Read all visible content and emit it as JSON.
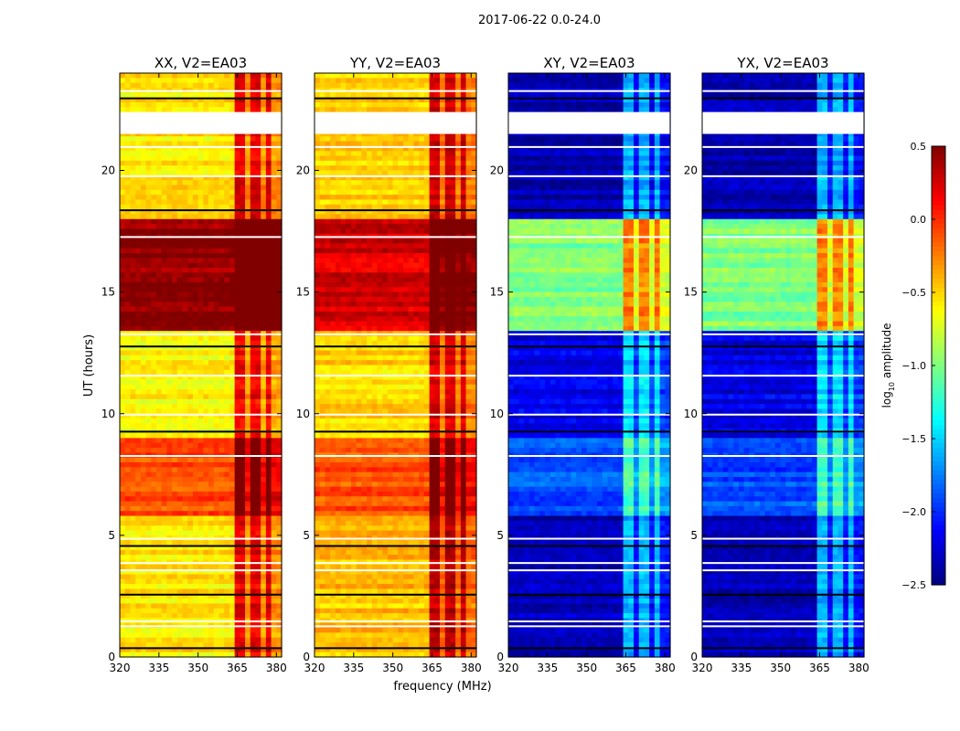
{
  "figure": {
    "suptitle": "2017-06-22 0.0-24.0",
    "ylabel": "UT (hours)",
    "xlabel": "frequency (MHz)"
  },
  "colorbar": {
    "label_prefix": "log",
    "label_sub": "10",
    "label_suffix": " amplitude",
    "colormap": "jet",
    "range": [
      -2.5,
      0.5
    ],
    "ticks": [
      "0.5",
      "0.0",
      "−0.5",
      "−1.0",
      "−1.5",
      "−2.0",
      "−2.5"
    ]
  },
  "chart_data": [
    {
      "type": "heatmap",
      "title": "XX, V2=EA03",
      "xlim": [
        320,
        382
      ],
      "ylim": [
        0,
        24
      ],
      "xticks": [
        "320",
        "335",
        "350",
        "365",
        "380"
      ],
      "yticks": [
        "0",
        "5",
        "10",
        "15",
        "20"
      ],
      "base_level": -0.55,
      "bands": [
        {
          "t0": 0,
          "t1": 5.8,
          "v": -0.55
        },
        {
          "t0": 5.8,
          "t1": 9.0,
          "v": -0.1
        },
        {
          "t0": 9.0,
          "t1": 13.5,
          "v": -0.6
        },
        {
          "t0": 13.5,
          "t1": 18.0,
          "v": 0.45
        },
        {
          "t0": 18.0,
          "t1": 24,
          "v": -0.55
        }
      ],
      "rfi_channels_mhz": [
        366,
        372,
        377
      ],
      "gap_hours": [
        21.5,
        22.4
      ]
    },
    {
      "type": "heatmap",
      "title": "YY, V2=EA03",
      "xlim": [
        320,
        382
      ],
      "ylim": [
        0,
        24
      ],
      "xticks": [
        "320",
        "335",
        "350",
        "365",
        "380"
      ],
      "yticks": [
        "0",
        "5",
        "10",
        "15",
        "20"
      ],
      "base_level": -0.45,
      "bands": [
        {
          "t0": 0,
          "t1": 5.8,
          "v": -0.45
        },
        {
          "t0": 5.8,
          "t1": 9.0,
          "v": -0.1
        },
        {
          "t0": 9.0,
          "t1": 13.5,
          "v": -0.5
        },
        {
          "t0": 13.5,
          "t1": 18.0,
          "v": 0.25
        },
        {
          "t0": 18.0,
          "t1": 24,
          "v": -0.5
        }
      ],
      "rfi_channels_mhz": [
        366,
        372,
        377
      ],
      "gap_hours": [
        21.5,
        22.4
      ]
    },
    {
      "type": "heatmap",
      "title": "XY, V2=EA03",
      "xlim": [
        320,
        382
      ],
      "ylim": [
        0,
        24
      ],
      "xticks": [
        "320",
        "335",
        "350",
        "365",
        "380"
      ],
      "yticks": [
        "0",
        "5",
        "10",
        "15",
        "20"
      ],
      "base_level": -2.3,
      "bands": [
        {
          "t0": 0,
          "t1": 5.8,
          "v": -2.35
        },
        {
          "t0": 5.8,
          "t1": 9.0,
          "v": -1.9
        },
        {
          "t0": 9.0,
          "t1": 13.5,
          "v": -2.2
        },
        {
          "t0": 13.5,
          "t1": 18.0,
          "v": -1.0
        },
        {
          "t0": 18.0,
          "t1": 24,
          "v": -2.35
        }
      ],
      "rfi_channels_mhz": [
        366,
        372,
        377
      ],
      "gap_hours": [
        21.5,
        22.4
      ]
    },
    {
      "type": "heatmap",
      "title": "YX, V2=EA03",
      "xlim": [
        320,
        382
      ],
      "ylim": [
        0,
        24
      ],
      "xticks": [
        "320",
        "335",
        "350",
        "365",
        "380"
      ],
      "yticks": [
        "0",
        "5",
        "10",
        "15",
        "20"
      ],
      "base_level": -2.3,
      "bands": [
        {
          "t0": 0,
          "t1": 5.8,
          "v": -2.35
        },
        {
          "t0": 5.8,
          "t1": 9.0,
          "v": -1.9
        },
        {
          "t0": 9.0,
          "t1": 13.5,
          "v": -2.2
        },
        {
          "t0": 13.5,
          "t1": 18.0,
          "v": -1.0
        },
        {
          "t0": 18.0,
          "t1": 24,
          "v": -2.35
        }
      ],
      "rfi_channels_mhz": [
        366,
        372,
        377
      ],
      "gap_hours": [
        21.5,
        22.4
      ]
    }
  ]
}
